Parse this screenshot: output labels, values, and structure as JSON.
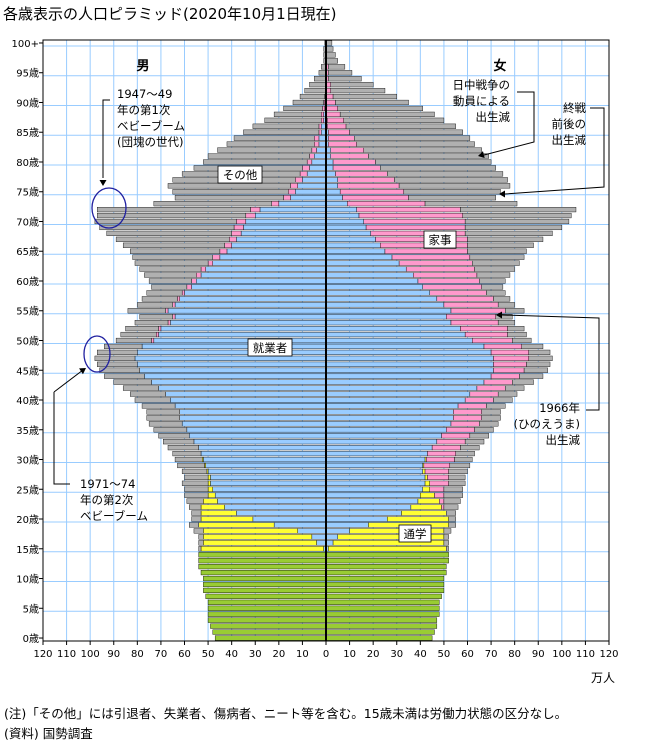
{
  "chart_data": {
    "type": "bar",
    "subtype": "population-pyramid",
    "title": "各歳表示の人口ピラミッド(2020年10月1日現在)",
    "xlim": [
      -120,
      120
    ],
    "xticks": [
      120,
      110,
      100,
      90,
      80,
      70,
      60,
      50,
      40,
      30,
      20,
      10,
      0,
      10,
      20,
      30,
      40,
      50,
      60,
      70,
      80,
      90,
      100,
      110,
      120
    ],
    "x_unit": "万人",
    "yticks": [
      "0歳",
      "5歳",
      "10歳",
      "15歳",
      "20歳",
      "25歳",
      "30歳",
      "35歳",
      "40歳",
      "45歳",
      "50歳",
      "55歳",
      "60歳",
      "65歳",
      "70歳",
      "75歳",
      "80歳",
      "85歳",
      "90歳",
      "95歳",
      "100+"
    ],
    "grid": true,
    "sex_labels": {
      "male": "男",
      "female": "女"
    },
    "segment_labels": {
      "student": "通学",
      "employed": "就業者",
      "housework": "家事",
      "other": "その他"
    },
    "colors": {
      "child": "#99cc33",
      "student": "#ffff33",
      "employed": "#99ccff",
      "housework": "#ff99cc",
      "other": "#b0b0b0"
    },
    "male": {
      "total": [
        47,
        48,
        49,
        50,
        50,
        50,
        50,
        51,
        52,
        52,
        52,
        53,
        54,
        54,
        54,
        54,
        54,
        54,
        56,
        58,
        57,
        57,
        58,
        59,
        60,
        60,
        61,
        60,
        61,
        63,
        64,
        65,
        67,
        69,
        71,
        73,
        75,
        76,
        76,
        78,
        81,
        83,
        86,
        90,
        94,
        96,
        97,
        98,
        97,
        94,
        89,
        87,
        85,
        81,
        79,
        84,
        80,
        78,
        76,
        74,
        75,
        77,
        79,
        81,
        82,
        83,
        86,
        89,
        93,
        96,
        98,
        97,
        97,
        73,
        64,
        65,
        67,
        65,
        61,
        56,
        52,
        50,
        46,
        42,
        39,
        35,
        31,
        26,
        22,
        18,
        14,
        11,
        9,
        7,
        5,
        3,
        2,
        1,
        1,
        1,
        0.5
      ],
      "employed": [
        0,
        0,
        0,
        0,
        0,
        0,
        0,
        0,
        0,
        0,
        0,
        0,
        0,
        0,
        0,
        1,
        4,
        6,
        12,
        22,
        31,
        38,
        43,
        46,
        47,
        48,
        49,
        49,
        50,
        51,
        52,
        53,
        54,
        56,
        58,
        59,
        61,
        62,
        62,
        64,
        66,
        68,
        71,
        74,
        77,
        79,
        80,
        81,
        80,
        78,
        73,
        71,
        70,
        66,
        64,
        67,
        64,
        62,
        60,
        57,
        55,
        53,
        51,
        48,
        45,
        42,
        40,
        38,
        36,
        35,
        34,
        30,
        28,
        20,
        15,
        13,
        12,
        10,
        8,
        7,
        6,
        5,
        4,
        3,
        3,
        2,
        2,
        1,
        1,
        0.5,
        0.5,
        0,
        0,
        0,
        0,
        0,
        0,
        0,
        0,
        0,
        0
      ],
      "student": [
        0,
        0,
        0,
        0,
        0,
        0,
        0,
        0,
        0,
        0,
        0,
        0,
        0,
        0,
        0,
        52,
        48,
        46,
        40,
        32,
        22,
        15,
        10,
        6,
        3,
        2,
        1,
        1,
        0.5,
        0.5,
        0.5,
        0,
        0,
        0,
        0,
        0,
        0,
        0,
        0,
        0,
        0,
        0,
        0,
        0,
        0,
        0,
        0,
        0,
        0,
        0,
        0,
        0,
        0,
        0,
        0,
        0,
        0,
        0,
        0,
        0,
        0,
        0,
        0,
        0,
        0,
        0,
        0,
        0,
        0,
        0,
        0,
        0,
        0,
        0,
        0,
        0,
        0,
        0,
        0,
        0,
        0,
        0,
        0,
        0,
        0,
        0,
        0,
        0,
        0,
        0,
        0,
        0,
        0,
        0,
        0,
        0,
        0,
        0,
        0,
        0,
        0
      ],
      "housework": [
        0,
        0,
        0,
        0,
        0,
        0,
        0,
        0,
        0,
        0,
        0,
        0,
        0,
        0,
        0,
        0,
        0,
        0,
        0,
        0,
        0,
        0,
        0,
        0,
        0,
        0,
        0,
        0,
        0,
        0,
        0,
        0,
        0,
        0,
        0,
        0,
        0,
        0,
        0,
        0,
        0,
        0,
        0,
        0,
        0,
        0,
        0,
        0,
        0,
        0,
        1,
        1,
        1,
        1,
        1,
        1,
        1,
        1,
        1,
        2,
        2,
        2,
        2,
        2,
        3,
        3,
        3,
        3,
        4,
        4,
        4,
        4,
        4,
        3,
        3,
        3,
        3,
        3,
        3,
        3,
        2,
        2,
        2,
        2,
        2,
        1,
        1,
        1,
        1,
        1,
        0.5,
        0.5,
        0,
        0,
        0,
        0,
        0,
        0,
        0,
        0,
        0
      ]
    },
    "female": {
      "total": [
        45,
        46,
        47,
        47,
        48,
        48,
        48,
        49,
        50,
        50,
        50,
        51,
        51,
        52,
        52,
        52,
        52,
        52,
        53,
        55,
        55,
        55,
        56,
        57,
        58,
        58,
        59,
        59,
        60,
        61,
        62,
        63,
        65,
        67,
        69,
        71,
        73,
        74,
        74,
        76,
        79,
        81,
        84,
        88,
        92,
        94,
        95,
        96,
        95,
        92,
        87,
        85,
        84,
        80,
        79,
        84,
        80,
        78,
        76,
        75,
        76,
        78,
        80,
        82,
        84,
        85,
        88,
        92,
        96,
        100,
        103,
        104,
        106,
        81,
        72,
        74,
        78,
        77,
        75,
        72,
        70,
        69,
        66,
        63,
        61,
        58,
        55,
        50,
        46,
        41,
        35,
        30,
        25,
        20,
        15,
        11,
        8,
        5,
        4,
        3,
        2.5
      ],
      "employed": [
        0,
        0,
        0,
        0,
        0,
        0,
        0,
        0,
        0,
        0,
        0,
        0,
        0,
        0,
        0,
        1,
        3,
        5,
        10,
        18,
        26,
        32,
        36,
        39,
        40,
        41,
        42,
        42,
        41,
        41,
        42,
        43,
        45,
        47,
        49,
        51,
        53,
        54,
        54,
        56,
        59,
        61,
        64,
        67,
        70,
        71,
        71,
        71,
        70,
        67,
        62,
        59,
        57,
        53,
        51,
        53,
        50,
        47,
        44,
        41,
        39,
        37,
        34,
        31,
        28,
        25,
        23,
        21,
        19,
        17,
        16,
        14,
        13,
        9,
        7,
        6,
        5,
        5,
        4,
        3,
        3,
        2,
        2,
        1,
        1,
        1,
        0.5,
        0.5,
        0,
        0,
        0,
        0,
        0,
        0,
        0,
        0,
        0,
        0,
        0,
        0,
        0
      ],
      "student": [
        0,
        0,
        0,
        0,
        0,
        0,
        0,
        0,
        0,
        0,
        0,
        0,
        0,
        0,
        0,
        50,
        47,
        45,
        40,
        34,
        26,
        19,
        13,
        9,
        6,
        3,
        2,
        1,
        1,
        0.5,
        0.5,
        0,
        0,
        0,
        0,
        0,
        0,
        0,
        0,
        0,
        0,
        0,
        0,
        0,
        0,
        0,
        0,
        0,
        0,
        0,
        0,
        0,
        0,
        0,
        0,
        0,
        0,
        0,
        0,
        0,
        0,
        0,
        0,
        0,
        0,
        0,
        0,
        0,
        0,
        0,
        0,
        0,
        0,
        0,
        0,
        0,
        0,
        0,
        0,
        0,
        0,
        0,
        0,
        0,
        0,
        0,
        0,
        0,
        0,
        0,
        0,
        0,
        0,
        0,
        0,
        0,
        0,
        0,
        0,
        0,
        0
      ],
      "housework": [
        0,
        0,
        0,
        0,
        0,
        0,
        0,
        0,
        0,
        0,
        0,
        0,
        0,
        0,
        0,
        0,
        0,
        0,
        0,
        0,
        0,
        0,
        1,
        2,
        4,
        6,
        8,
        9,
        10,
        11,
        12,
        12,
        12,
        12,
        12,
        12,
        12,
        12,
        12,
        12,
        12,
        12,
        12,
        12,
        12,
        13,
        14,
        15,
        16,
        16,
        17,
        18,
        20,
        20,
        21,
        23,
        23,
        24,
        24,
        25,
        26,
        27,
        29,
        31,
        33,
        35,
        37,
        39,
        40,
        42,
        43,
        44,
        44,
        33,
        28,
        27,
        26,
        24,
        22,
        20,
        18,
        16,
        14,
        12,
        11,
        9,
        8,
        7,
        6,
        5,
        4,
        3,
        2,
        2,
        1,
        1,
        1,
        0,
        0,
        0,
        0
      ]
    },
    "annotations": [
      {
        "lines": [
          "1947〜49",
          "年の第1次",
          "ベビーブーム",
          "(団塊の世代)"
        ]
      },
      {
        "lines": [
          "1971〜74",
          "年の第2次",
          "ベビーブーム"
        ]
      },
      {
        "lines": [
          "日中戦争の",
          "動員による",
          "出生減"
        ]
      },
      {
        "lines": [
          "終戦",
          "前後の",
          "出生減"
        ]
      },
      {
        "lines": [
          "1966年",
          "(ひのえうま)",
          "出生減"
        ]
      }
    ]
  },
  "notes": [
    "(注)「その他」には引退者、失業者、傷病者、ニート等を含む。15歳未満は労働力状態の区分なし。",
    "(資料) 国勢調査"
  ]
}
